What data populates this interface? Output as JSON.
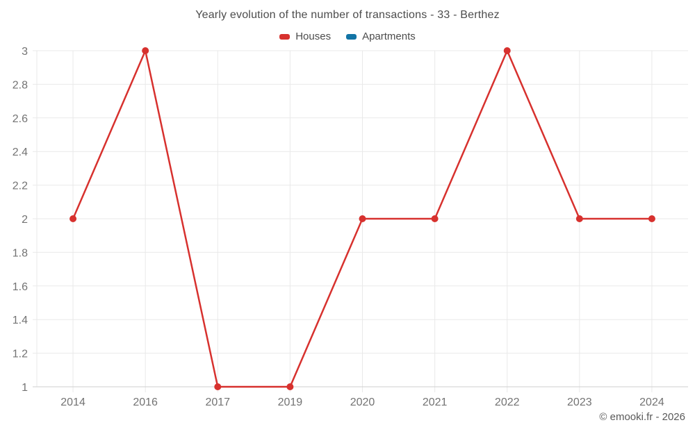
{
  "chart": {
    "title": "Yearly evolution of the number of transactions - 33 - Berthez",
    "copyright": "© emooki.fr - 2026"
  },
  "chart_data": {
    "type": "line",
    "title": "Yearly evolution of the number of transactions - 33 - Berthez",
    "categories": [
      "2014",
      "2016",
      "2017",
      "2019",
      "2020",
      "2021",
      "2022",
      "2023",
      "2024"
    ],
    "series": [
      {
        "name": "Houses",
        "color": "#d7312e",
        "values": [
          2,
          3,
          1,
          1,
          2,
          2,
          3,
          2,
          2
        ]
      },
      {
        "name": "Apartments",
        "color": "#1274a5",
        "values": []
      }
    ],
    "xlabel": "",
    "ylabel": "",
    "ylim": [
      1,
      3
    ],
    "yticks": [
      1,
      1.2,
      1.4,
      1.6,
      1.8,
      2,
      2.2,
      2.4,
      2.6,
      2.8,
      3
    ],
    "grid": true,
    "legend_position": "top",
    "colors": {
      "gridline": "#e9e9e9",
      "axis_line": "#cfcfcf",
      "tick_label": "#737373",
      "title_text": "#4c4c4c"
    }
  }
}
